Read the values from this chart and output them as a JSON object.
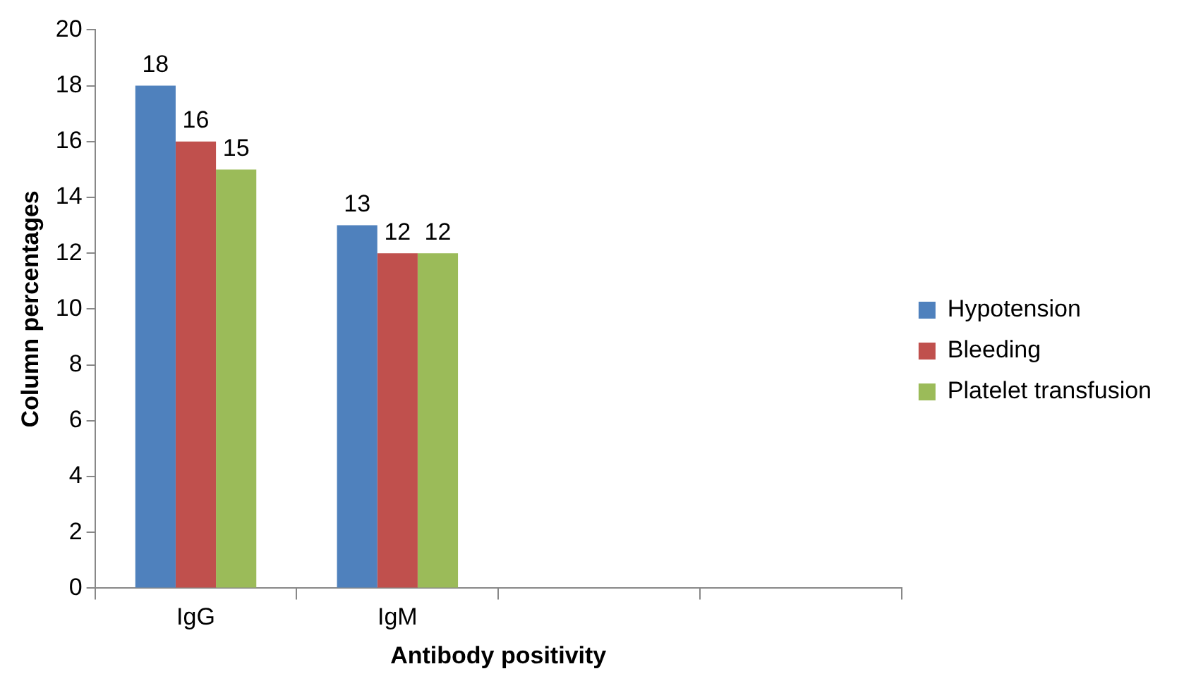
{
  "chart_data": {
    "type": "bar",
    "xlabel": "Antibody positivity",
    "ylabel": "Column percentages",
    "categories": [
      "IgG",
      "IgM",
      null,
      null
    ],
    "series": [
      {
        "name": "Hypotension",
        "color": "#4f81bd",
        "values": [
          18,
          13,
          null,
          null
        ]
      },
      {
        "name": "Bleeding",
        "color": "#c0504d",
        "values": [
          16,
          12,
          null,
          null
        ]
      },
      {
        "name": "Platelet transfusion",
        "color": "#9bbb59",
        "values": [
          15,
          12,
          null,
          null
        ]
      }
    ],
    "ylim": [
      0,
      20
    ],
    "yticks": [
      0,
      2,
      4,
      6,
      8,
      10,
      12,
      14,
      16,
      18,
      20
    ],
    "grid": false,
    "legend": "right",
    "data_labels": true
  }
}
